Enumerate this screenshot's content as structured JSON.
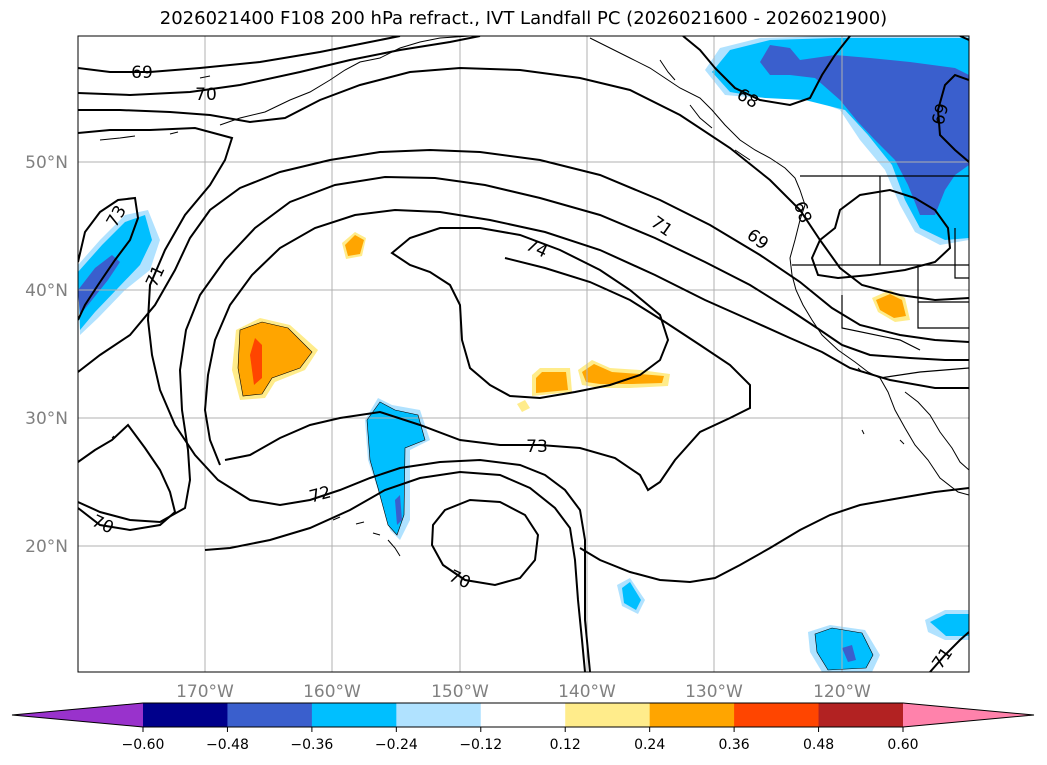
{
  "title": "2026021400 F108 200 hPa refract., IVT Landfall PC (2026021600 - 2026021900)",
  "map": {
    "lat_labels": [
      "50°N",
      "40°N",
      "30°N",
      "20°N"
    ],
    "lon_labels": [
      "170°W",
      "160°W",
      "150°W",
      "140°W",
      "130°W",
      "120°W"
    ],
    "contour_labels": [
      "69",
      "70",
      "68",
      "69",
      "73",
      "71",
      "74",
      "71",
      "69",
      "68",
      "73",
      "72",
      "70",
      "70",
      "71"
    ]
  },
  "colorbar": {
    "ticks": [
      "−0.60",
      "−0.48",
      "−0.36",
      "−0.24",
      "−0.12",
      "0.12",
      "0.24",
      "0.36",
      "0.48",
      "0.60"
    ],
    "colors": [
      "#9932CC",
      "#00008B",
      "#3A5FCD",
      "#00BFFF",
      "#B0E2FF",
      "#FFFFFF",
      "#FFEC8B",
      "#FFA500",
      "#FF4500",
      "#B22222",
      "#FF82AB"
    ]
  },
  "fill_colors": {
    "light_blue": "#B0E2FF",
    "blue": "#00BFFF",
    "dark_blue": "#3A5FCD",
    "light_yellow": "#FFEC8B",
    "orange": "#FFA500",
    "red_orange": "#FF4500"
  }
}
